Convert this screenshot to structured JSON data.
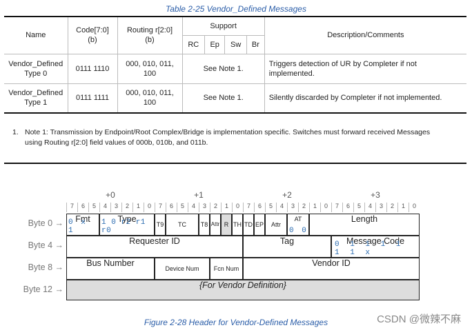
{
  "table_caption": "Table  2-25 Vendor_Defined Messages",
  "table": {
    "headers": {
      "name": "Name",
      "code": "Code[7:0]\n(b)",
      "routing": "Routing r[2:0]\n(b)",
      "support": "Support",
      "support_cols": [
        "RC",
        "Ep",
        "Sw",
        "Br"
      ],
      "desc": "Description/Comments"
    },
    "rows": [
      {
        "name": "Vendor_Defined\nType 0",
        "code": "0111 1110",
        "routing": "000, 010, 011,\n100",
        "support": "See Note 1.",
        "desc": "Triggers detection of UR by Completer if not\nimplemented."
      },
      {
        "name": "Vendor_Defined\nType 1",
        "code": "0111 1111",
        "routing": "000, 010, 011,\n100",
        "support": "See Note 1.",
        "desc": "Silently discarded by Completer if not implemented."
      }
    ]
  },
  "note": {
    "num": "1.",
    "text": "Note 1: Transmission by Endpoint/Root Complex/Bridge is implementation specific. Switches must forward received Messages using Routing r[2:0] field values of 000b, 010b, and 011b."
  },
  "figure": {
    "byte_headers": [
      "+0",
      "+1",
      "+2",
      "+3"
    ],
    "bit_labels": [
      "7",
      "6",
      "5",
      "4",
      "3",
      "2",
      "1",
      "0"
    ],
    "row_labels": [
      "Byte 0 →",
      "Byte 4 →",
      "Byte 8 →",
      "Byte 12 →"
    ],
    "fields": {
      "fmt": "Fmt",
      "fmt_bits": "0 x 1",
      "type": "Type",
      "type_bits": "1 0 r2 r1 r0",
      "t9": "T9",
      "tc": "TC",
      "t8": "T8",
      "attr_a": "Attr",
      "r": "R",
      "th": "TH",
      "td": "TD",
      "ep": "EP",
      "attr_b": "Attr",
      "at": "AT",
      "at_bits": "0 0",
      "length": "Length",
      "requester_id": "Requester ID",
      "tag": "Tag",
      "message_code": "Message Code",
      "message_code_bits": "0 1 1 1 1 1 1 x",
      "bus_number": "Bus Number",
      "device_num": "Device Num",
      "fcn_num": "Fcn Num",
      "vendor_id": "Vendor ID",
      "vendor_def": "{For Vendor Definition}"
    }
  },
  "figure_caption": "Figure  2-28 Header for Vendor-Defined Messages",
  "watermark": "CSDN @微辣不麻"
}
